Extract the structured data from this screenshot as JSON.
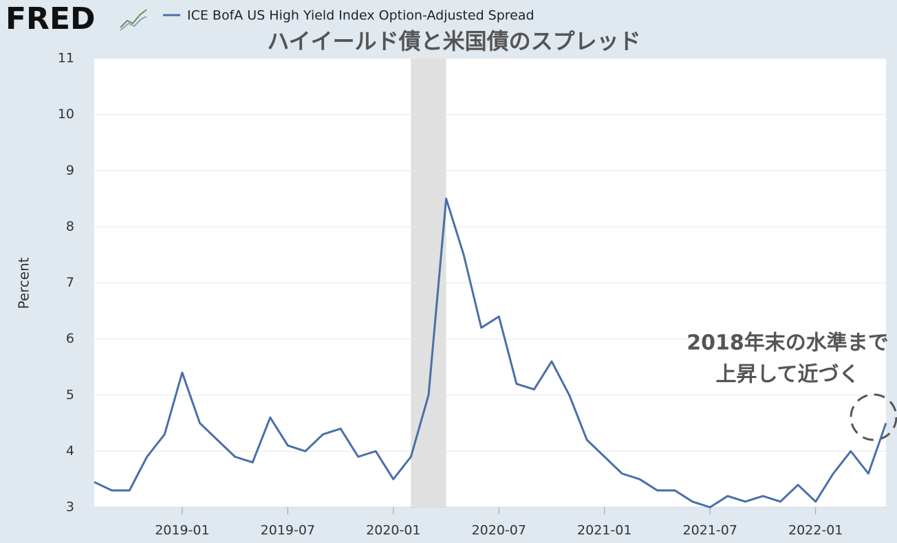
{
  "chart_data": {
    "type": "line",
    "logo": "FRED",
    "title": "ハイイールド債と米国債のスプレッド",
    "y_label": "Percent",
    "annotation": [
      "2018年末の水準まで",
      "上昇して近づく"
    ],
    "x": [
      "2018-08",
      "2018-09",
      "2018-10",
      "2018-11",
      "2018-12",
      "2019-01",
      "2019-02",
      "2019-03",
      "2019-04",
      "2019-05",
      "2019-06",
      "2019-07",
      "2019-08",
      "2019-09",
      "2019-10",
      "2019-11",
      "2019-12",
      "2020-01",
      "2020-02",
      "2020-03",
      "2020-04",
      "2020-05",
      "2020-06",
      "2020-07",
      "2020-08",
      "2020-09",
      "2020-10",
      "2020-11",
      "2020-12",
      "2021-01",
      "2021-02",
      "2021-03",
      "2021-04",
      "2021-05",
      "2021-06",
      "2021-07",
      "2021-08",
      "2021-09",
      "2021-10",
      "2021-11",
      "2021-12",
      "2022-01",
      "2022-02",
      "2022-03",
      "2022-04",
      "2022-05"
    ],
    "series": [
      {
        "name": "ICE BofA US High Yield Index Option-Adjusted Spread",
        "color": "#4a6ea9",
        "values": [
          3.45,
          3.3,
          3.3,
          3.9,
          4.3,
          5.4,
          4.5,
          4.2,
          3.9,
          3.8,
          4.6,
          4.1,
          4.0,
          4.3,
          4.4,
          3.9,
          4.0,
          3.5,
          3.9,
          5.0,
          8.5,
          7.5,
          6.2,
          6.4,
          5.2,
          5.1,
          5.6,
          5.0,
          4.2,
          3.9,
          3.6,
          3.5,
          3.3,
          3.3,
          3.1,
          3.0,
          3.2,
          3.1,
          3.2,
          3.1,
          3.4,
          3.1,
          3.6,
          4.0,
          3.6,
          4.5
        ]
      }
    ],
    "recession": [
      "2020-02",
      "2020-04"
    ],
    "xlim": [
      "2018-08",
      "2022-05"
    ],
    "xticks": [
      "2019-01",
      "2019-07",
      "2020-01",
      "2020-07",
      "2021-01",
      "2021-07",
      "2022-01"
    ],
    "ylim": [
      3,
      11
    ],
    "yticks": [
      3,
      4,
      5,
      6,
      7,
      8,
      9,
      10,
      11
    ],
    "grid": true
  }
}
